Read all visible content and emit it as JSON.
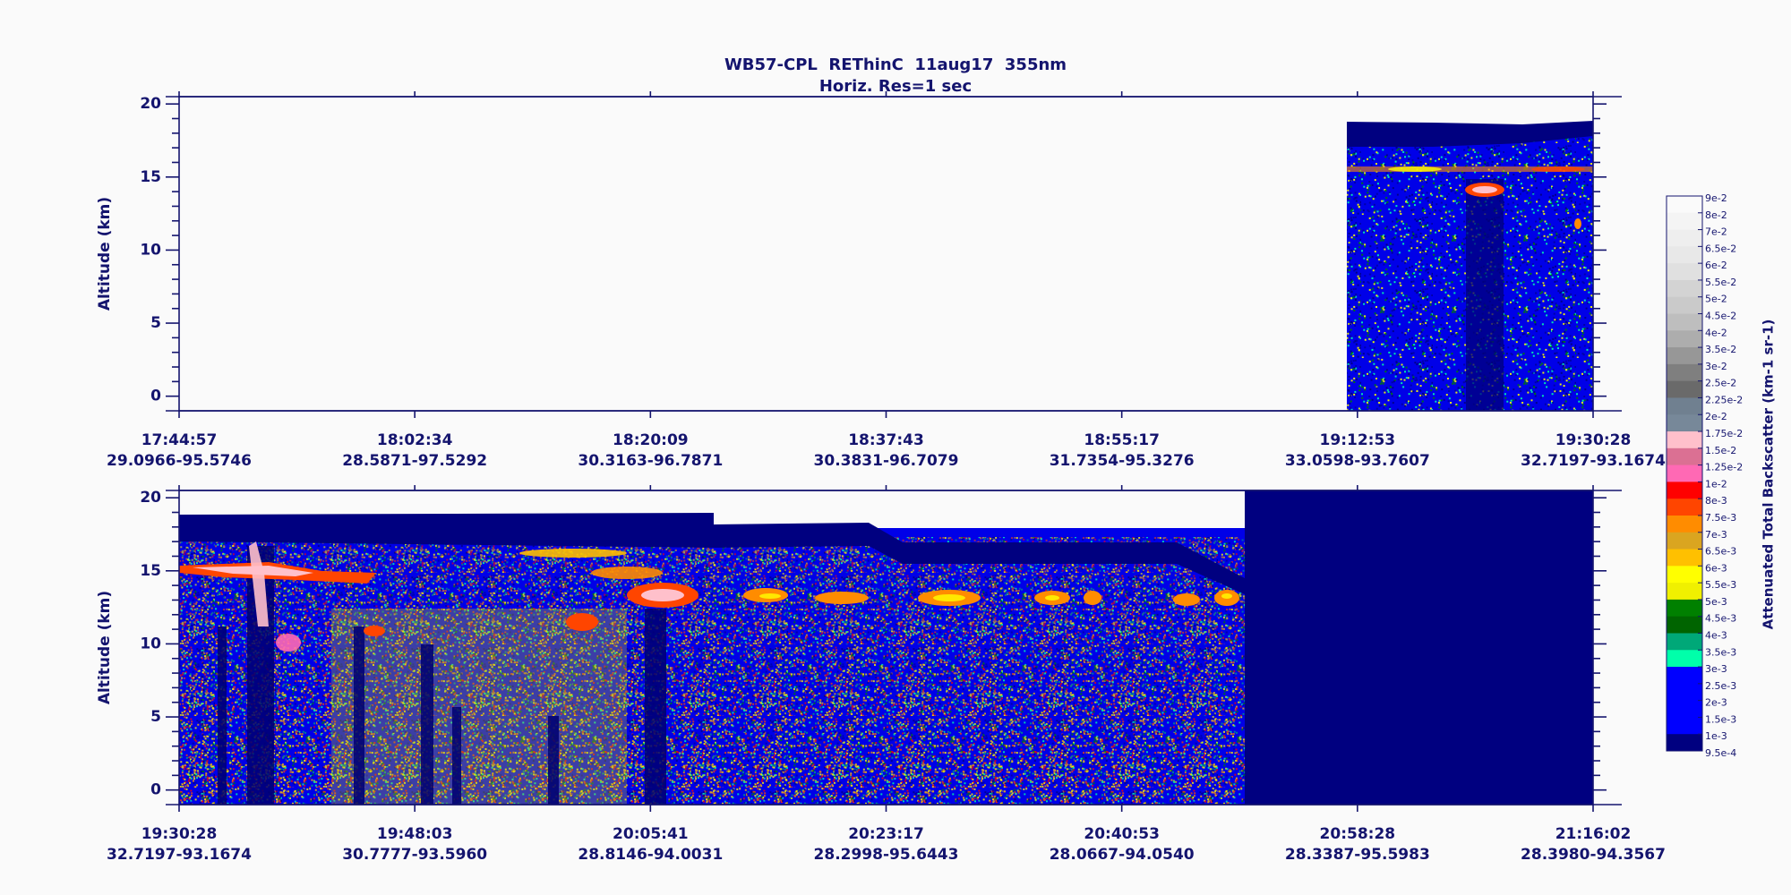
{
  "title": "WB57-CPL  REThinC  11aug17  355nm",
  "subtitle": "Horiz. Res=1 sec",
  "chart_data": [
    {
      "type": "curtain",
      "ylabel": "Altitude (km)",
      "ylim": [
        -1,
        20.5
      ],
      "yticks": [
        0,
        5,
        10,
        15,
        20
      ],
      "categories": [
        "17:44:57",
        "18:02:34",
        "18:20:09",
        "18:37:43",
        "18:55:17",
        "19:12:53",
        "19:30:28"
      ],
      "locations": [
        "29.0966-95.5746",
        "28.5871-97.5292",
        "30.3163-96.7871",
        "30.3831-96.7079",
        "31.7354-95.3276",
        "33.0598-93.7607",
        "32.7197-93.1674"
      ]
    },
    {
      "type": "curtain",
      "ylabel": "Altitude (km)",
      "ylim": [
        -1,
        20.5
      ],
      "yticks": [
        0,
        5,
        10,
        15,
        20
      ],
      "categories": [
        "19:30:28",
        "19:48:03",
        "20:05:41",
        "20:23:17",
        "20:40:53",
        "20:58:28",
        "21:16:02"
      ],
      "locations": [
        "32.7197-93.1674",
        "30.7777-93.5960",
        "28.8146-94.0031",
        "28.2998-95.6443",
        "28.0667-94.0540",
        "28.3387-95.5983",
        "28.3980-94.3567"
      ]
    }
  ],
  "colorbar": {
    "label": "Attenuated Total Backscatter (km-1 sr-1)",
    "levels": [
      {
        "value": 0.09,
        "label": "9e-2"
      },
      {
        "value": 0.08,
        "label": "8e-2"
      },
      {
        "value": 0.07,
        "label": "7e-2"
      },
      {
        "value": 0.065,
        "label": "6.5e-2"
      },
      {
        "value": 0.06,
        "label": "6e-2"
      },
      {
        "value": 0.055,
        "label": "5.5e-2"
      },
      {
        "value": 0.05,
        "label": "5e-2"
      },
      {
        "value": 0.045,
        "label": "4.5e-2"
      },
      {
        "value": 0.04,
        "label": "4e-2"
      },
      {
        "value": 0.035,
        "label": "3.5e-2"
      },
      {
        "value": 0.03,
        "label": "3e-2"
      },
      {
        "value": 0.025,
        "label": "2.5e-2"
      },
      {
        "value": 0.0225,
        "label": "2.25e-2"
      },
      {
        "value": 0.02,
        "label": "2e-2"
      },
      {
        "value": 0.0175,
        "label": "1.75e-2"
      },
      {
        "value": 0.015,
        "label": "1.5e-2"
      },
      {
        "value": 0.0125,
        "label": "1.25e-2"
      },
      {
        "value": 0.01,
        "label": "1e-2"
      },
      {
        "value": 0.008,
        "label": "8e-3"
      },
      {
        "value": 0.0075,
        "label": "7.5e-3"
      },
      {
        "value": 0.007,
        "label": "7e-3"
      },
      {
        "value": 0.0065,
        "label": "6.5e-3"
      },
      {
        "value": 0.006,
        "label": "6e-3"
      },
      {
        "value": 0.0055,
        "label": "5.5e-3"
      },
      {
        "value": 0.005,
        "label": "5e-3"
      },
      {
        "value": 0.0045,
        "label": "4.5e-3"
      },
      {
        "value": 0.004,
        "label": "4e-3"
      },
      {
        "value": 0.0035,
        "label": "3.5e-3"
      },
      {
        "value": 0.003,
        "label": "3e-3"
      },
      {
        "value": 0.0025,
        "label": "2.5e-3"
      },
      {
        "value": 0.002,
        "label": "2e-3"
      },
      {
        "value": 0.0015,
        "label": "1.5e-3"
      },
      {
        "value": 0.001,
        "label": "1e-3"
      },
      {
        "value": 0.00095,
        "label": "9.5e-4"
      }
    ],
    "colors": [
      "#fafafa",
      "#f4f4f4",
      "#eeeeee",
      "#e8e8e8",
      "#e0e0e0",
      "#d3d3d3",
      "#cacaca",
      "#bebebe",
      "#adadad",
      "#979797",
      "#7f7f7f",
      "#6a6a6a",
      "#708090",
      "#778899",
      "#ffc0cb",
      "#db7093",
      "#ff69b4",
      "#ff0000",
      "#ff4500",
      "#ff8c00",
      "#daa520",
      "#ffc000",
      "#ffff00",
      "#f0f000",
      "#008000",
      "#006400",
      "#00a878",
      "#00ffaa",
      "#0000ff",
      "#0000ff",
      "#0000ff",
      "#0000ff",
      "#000080"
    ]
  }
}
